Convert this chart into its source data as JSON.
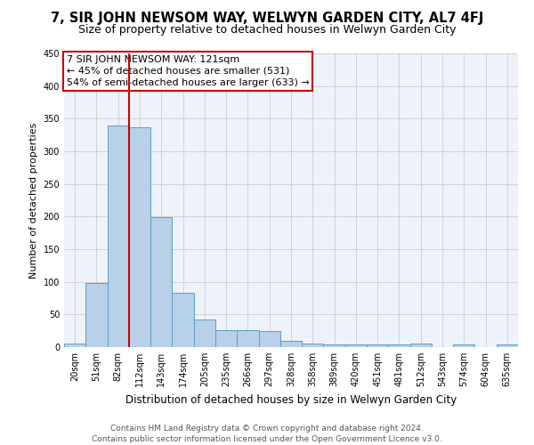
{
  "title": "7, SIR JOHN NEWSOM WAY, WELWYN GARDEN CITY, AL7 4FJ",
  "subtitle": "Size of property relative to detached houses in Welwyn Garden City",
  "xlabel": "Distribution of detached houses by size in Welwyn Garden City",
  "ylabel": "Number of detached properties",
  "bar_color": "#b8d0e8",
  "bar_edge_color": "#5a9fc8",
  "background_color": "#eef2fa",
  "grid_color": "#cccccc",
  "categories": [
    "20sqm",
    "51sqm",
    "82sqm",
    "112sqm",
    "143sqm",
    "174sqm",
    "205sqm",
    "235sqm",
    "266sqm",
    "297sqm",
    "328sqm",
    "358sqm",
    "389sqm",
    "420sqm",
    "451sqm",
    "481sqm",
    "512sqm",
    "543sqm",
    "574sqm",
    "604sqm",
    "635sqm"
  ],
  "values": [
    5,
    98,
    340,
    337,
    199,
    83,
    42,
    26,
    26,
    24,
    10,
    6,
    4,
    4,
    4,
    4,
    6,
    0,
    4,
    0,
    4
  ],
  "ylim": [
    0,
    450
  ],
  "yticks": [
    0,
    50,
    100,
    150,
    200,
    250,
    300,
    350,
    400,
    450
  ],
  "annotation_text": "7 SIR JOHN NEWSOM WAY: 121sqm\n← 45% of detached houses are smaller (531)\n54% of semi-detached houses are larger (633) →",
  "vline_position": 2.52,
  "footer_text": "Contains HM Land Registry data © Crown copyright and database right 2024.\nContains public sector information licensed under the Open Government Licence v3.0.",
  "title_fontsize": 10.5,
  "subtitle_fontsize": 9,
  "annotation_fontsize": 8,
  "footer_fontsize": 6.5,
  "ylabel_fontsize": 8,
  "xlabel_fontsize": 8.5,
  "tick_fontsize": 7
}
